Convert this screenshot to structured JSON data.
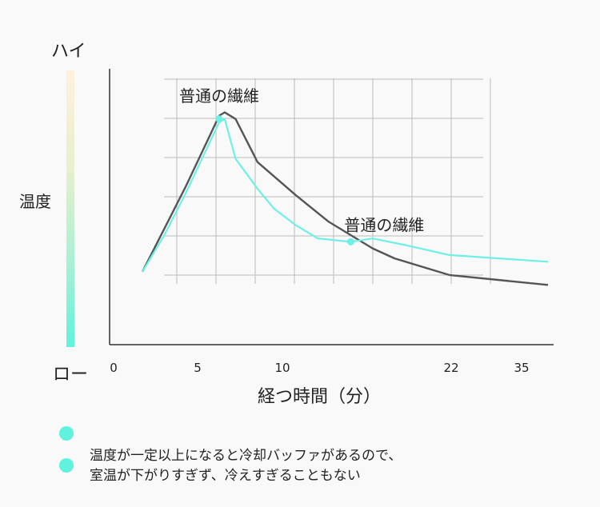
{
  "scale": {
    "high": "ハイ",
    "low": "ロー",
    "label": "温度"
  },
  "colors": {
    "regular_fiber": "#555555",
    "this_product": "#6ff0e6",
    "bar_top": "#fff1dc",
    "bar_bottom": "#5ff2dc"
  },
  "chart_data": {
    "type": "line",
    "xlabel": "経つ時間（分）",
    "ylabel": "温度",
    "x_ticks": [
      "0",
      "5",
      "10",
      "22",
      "35"
    ],
    "xlim": [
      0,
      40
    ],
    "ylim": [
      0,
      100
    ],
    "grid": true,
    "series": [
      {
        "name": "",
        "color": "#555555",
        "x": [
          3,
          5,
          7,
          9,
          10,
          10.5,
          11.5,
          13.5,
          17,
          20,
          24,
          26,
          31,
          40
        ],
        "y": [
          22,
          35,
          48,
          62,
          69,
          70,
          68,
          55,
          45,
          37,
          29,
          26,
          21,
          18
        ]
      },
      {
        "name": "",
        "color": "#6ff0e6",
        "x": [
          3,
          5,
          7,
          9,
          10,
          10.5,
          11.5,
          13.5,
          15,
          17,
          19,
          22,
          24,
          27,
          31,
          40
        ],
        "y": [
          22,
          33,
          46,
          60,
          67,
          68,
          56,
          47,
          41,
          36,
          32,
          31,
          32,
          30,
          27,
          25
        ]
      }
    ],
    "annotations": [
      {
        "text": "普通の繊維",
        "x": 10,
        "y": 68
      },
      {
        "text": "普通の繊維",
        "x": 22,
        "y": 31
      }
    ]
  },
  "notes": {
    "line1": "温度が一定以上になると冷却バッファがあるので、",
    "line2": "室温が下がりすぎず、冷えすぎることもない"
  }
}
